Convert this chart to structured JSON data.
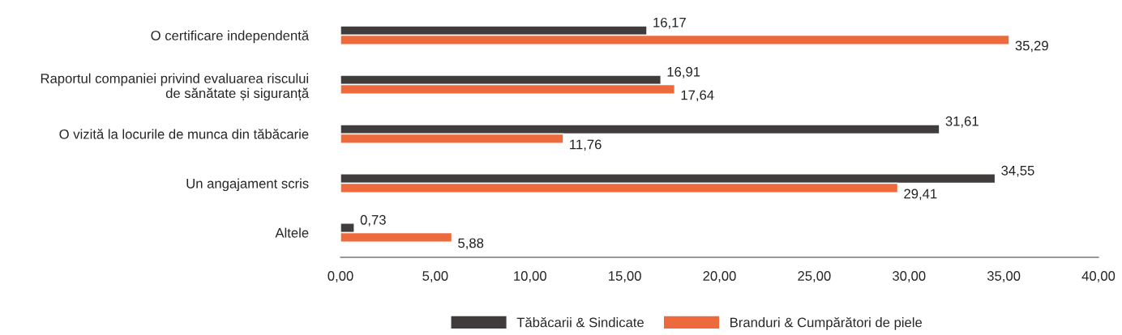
{
  "chart_data": {
    "type": "bar",
    "orientation": "horizontal",
    "categories": [
      "O certificare independentă",
      "Raportul companiei privind evaluarea riscului\nde sănătate și siguranță",
      "O vizită la locurile de munca din tăbăcarie",
      "Un angajament scris",
      "Altele"
    ],
    "series": [
      {
        "name": "Tăbăcarii & Sindicate",
        "color": "#403c3c",
        "values": [
          16.17,
          16.91,
          31.61,
          34.55,
          0.73
        ],
        "value_labels": [
          "16,17",
          "16,91",
          "31,61",
          "34,55",
          "0,73"
        ]
      },
      {
        "name": "Branduri & Cumpărători de piele",
        "color": "#ec6a3c",
        "values": [
          35.29,
          17.64,
          11.76,
          29.41,
          5.88
        ],
        "value_labels": [
          "35,29",
          "17,64",
          "11,76",
          "29,41",
          "5,88"
        ]
      }
    ],
    "xlim": [
      0,
      40
    ],
    "xticks": [
      {
        "value": 0,
        "label": "0,00"
      },
      {
        "value": 5,
        "label": "5,00"
      },
      {
        "value": 10,
        "label": "10,00"
      },
      {
        "value": 15,
        "label": "15,00"
      },
      {
        "value": 20,
        "label": "20,00"
      },
      {
        "value": 25,
        "label": "25,00"
      },
      {
        "value": 30,
        "label": "30,00"
      },
      {
        "value": 35,
        "label": "35,00"
      },
      {
        "value": 40,
        "label": "40,00"
      }
    ],
    "grid": false,
    "legend": "bottom"
  }
}
